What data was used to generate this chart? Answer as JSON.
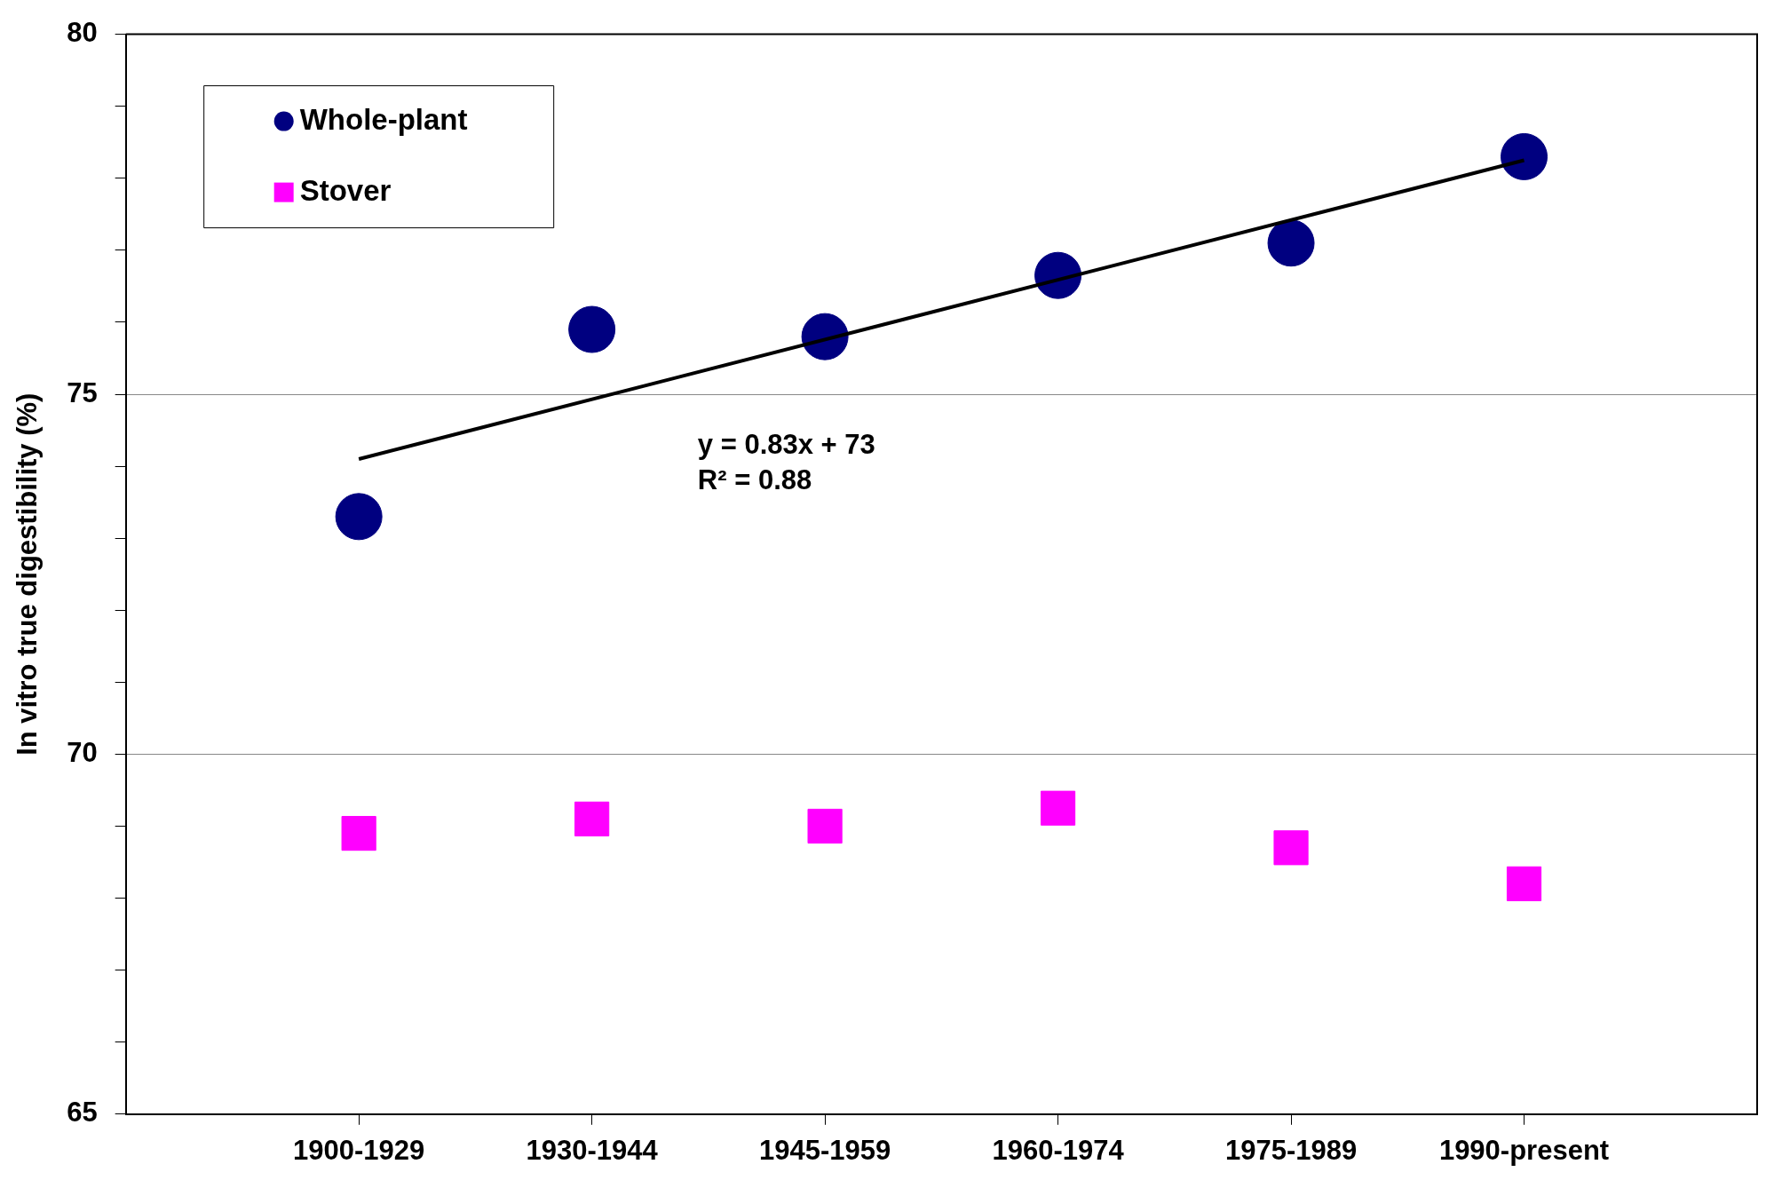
{
  "chart_data": {
    "type": "scatter",
    "ylabel": "In vitro true digestibility (%)",
    "categories": [
      "1900-1929",
      "1930-1944",
      "1945-1959",
      "1960-1974",
      "1975-1989",
      "1990-present"
    ],
    "series": [
      {
        "name": "Whole-plant",
        "color": "#000080",
        "marker": "circle",
        "values": [
          73.3,
          75.9,
          75.8,
          76.65,
          77.1,
          78.3
        ]
      },
      {
        "name": "Stover",
        "color": "#ff00ff",
        "marker": "square",
        "values": [
          68.9,
          69.1,
          69.0,
          69.25,
          68.7,
          68.2
        ]
      },
      {
        "type": "line",
        "color": "#000000",
        "marker": "none",
        "x": [
          "1900-1929",
          "1990-present"
        ],
        "values": [
          74.1,
          78.25
        ]
      }
    ],
    "annotations": [
      "y = 0.83x + 73",
      "R² = 0.88"
    ],
    "ylim": [
      65,
      80
    ],
    "yticks": [
      65,
      {
        "value": 66,
        "label": null
      },
      {
        "value": 67,
        "label": null
      },
      {
        "value": 68,
        "label": null
      },
      {
        "value": 69,
        "label": null
      },
      70,
      {
        "value": 71,
        "label": null
      },
      {
        "value": 72,
        "label": null
      },
      {
        "value": 73,
        "label": null
      },
      {
        "value": 74,
        "label": null
      },
      75,
      {
        "value": 76,
        "label": null
      },
      {
        "value": 77,
        "label": null
      },
      {
        "value": 78,
        "label": null
      },
      {
        "value": 79,
        "label": null
      },
      80
    ],
    "grid": "y",
    "legend": "top left"
  }
}
